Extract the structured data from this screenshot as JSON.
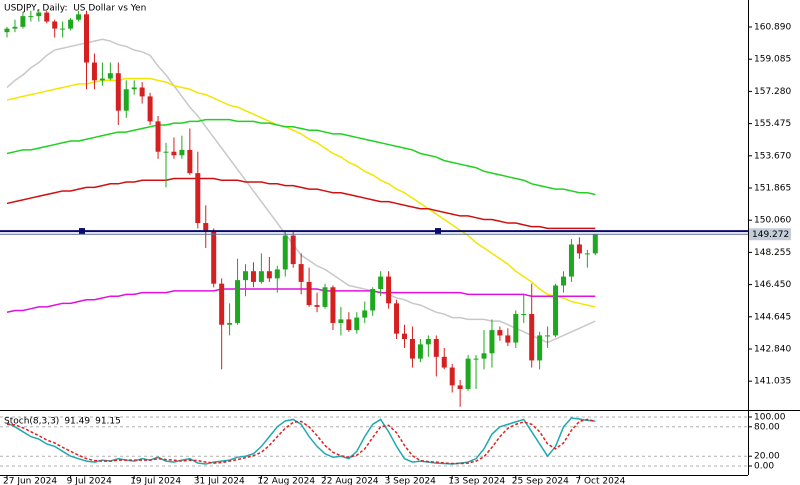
{
  "chart_data": [
    {
      "type": "candlestick",
      "title": "USDJPY, Daily:  US Dollar vs Yen",
      "categories": [
        "27 Jun 2024",
        null,
        null,
        null,
        null,
        null,
        null,
        null,
        "9 Jul 2024",
        null,
        null,
        null,
        null,
        null,
        null,
        null,
        "19 Jul 2024",
        null,
        null,
        null,
        null,
        null,
        null,
        null,
        "31 Jul 2024",
        null,
        null,
        null,
        null,
        null,
        null,
        null,
        "12 Aug 2024",
        null,
        null,
        null,
        null,
        null,
        null,
        null,
        "22 Aug 2024",
        null,
        null,
        null,
        null,
        null,
        null,
        null,
        "3 Sep 2024",
        null,
        null,
        null,
        null,
        null,
        null,
        null,
        "13 Sep 2024",
        null,
        null,
        null,
        null,
        null,
        null,
        null,
        "25 Sep 2024",
        null,
        null,
        null,
        null,
        null,
        null,
        null,
        "7 Oct 2024",
        null,
        null
      ],
      "ohlc": [
        [
          160.6,
          160.9,
          160.3,
          160.8
        ],
        [
          160.8,
          161.3,
          160.6,
          160.9
        ],
        [
          160.9,
          161.7,
          160.8,
          161.5
        ],
        [
          161.5,
          161.8,
          161.2,
          161.5
        ],
        [
          161.5,
          161.9,
          161.2,
          161.7
        ],
        [
          161.7,
          161.8,
          161.1,
          161.2
        ],
        [
          161.2,
          161.3,
          160.3,
          160.8
        ],
        [
          160.8,
          161.2,
          160.3,
          160.8
        ],
        [
          160.8,
          161.4,
          160.7,
          161.3
        ],
        [
          161.3,
          161.8,
          161.2,
          161.6
        ],
        [
          161.6,
          161.8,
          157.4,
          158.9
        ],
        [
          158.9,
          159.4,
          157.4,
          157.9
        ],
        [
          157.9,
          158.9,
          157.6,
          158.0
        ],
        [
          158.0,
          158.9,
          157.9,
          158.3
        ],
        [
          158.3,
          158.9,
          155.4,
          156.2
        ],
        [
          156.2,
          157.9,
          155.8,
          157.4
        ],
        [
          157.4,
          157.9,
          157.1,
          157.5
        ],
        [
          157.5,
          157.8,
          156.6,
          157.0
        ],
        [
          157.0,
          157.2,
          155.4,
          155.6
        ],
        [
          155.6,
          155.9,
          153.5,
          153.9
        ],
        [
          153.9,
          154.4,
          151.9,
          153.9
        ],
        [
          153.9,
          154.7,
          153.5,
          153.7
        ],
        [
          153.7,
          154.8,
          153.5,
          154.0
        ],
        [
          154.0,
          155.2,
          152.6,
          152.7
        ],
        [
          152.7,
          153.9,
          149.6,
          149.9
        ],
        [
          149.9,
          150.9,
          148.5,
          149.4
        ],
        [
          149.4,
          149.6,
          146.3,
          146.5
        ],
        [
          146.5,
          146.8,
          141.7,
          144.2
        ],
        [
          144.2,
          145.4,
          143.6,
          144.3
        ],
        [
          144.3,
          147.9,
          144.2,
          146.7
        ],
        [
          146.7,
          147.6,
          145.8,
          147.2
        ],
        [
          147.2,
          147.7,
          146.3,
          146.6
        ],
        [
          146.6,
          148.2,
          146.5,
          147.2
        ],
        [
          147.2,
          148.0,
          146.6,
          146.8
        ],
        [
          146.8,
          147.5,
          146.0,
          147.3
        ],
        [
          147.3,
          149.4,
          146.9,
          149.2
        ],
        [
          149.2,
          149.4,
          147.4,
          147.6
        ],
        [
          147.6,
          148.2,
          145.9,
          146.6
        ],
        [
          146.6,
          147.4,
          145.2,
          145.3
        ],
        [
          145.3,
          146.0,
          144.9,
          145.2
        ],
        [
          145.2,
          146.5,
          145.1,
          146.3
        ],
        [
          146.3,
          146.4,
          143.9,
          144.3
        ],
        [
          144.3,
          145.2,
          143.6,
          144.5
        ],
        [
          144.5,
          144.9,
          143.8,
          143.9
        ],
        [
          143.9,
          144.9,
          143.7,
          144.6
        ],
        [
          144.6,
          145.5,
          144.3,
          145.0
        ],
        [
          145.0,
          146.3,
          144.7,
          146.2
        ],
        [
          146.2,
          147.2,
          145.8,
          146.9
        ],
        [
          146.9,
          147.2,
          145.1,
          145.4
        ],
        [
          145.4,
          145.6,
          143.4,
          143.7
        ],
        [
          143.7,
          144.2,
          142.9,
          143.4
        ],
        [
          143.4,
          144.1,
          141.8,
          142.3
        ],
        [
          142.3,
          143.4,
          142.1,
          143.1
        ],
        [
          143.1,
          143.6,
          142.4,
          143.4
        ],
        [
          143.4,
          143.6,
          141.3,
          142.4
        ],
        [
          142.4,
          142.9,
          141.7,
          141.8
        ],
        [
          141.8,
          142.0,
          140.4,
          140.8
        ],
        [
          140.8,
          141.1,
          139.6,
          140.6
        ],
        [
          140.6,
          142.5,
          140.5,
          142.3
        ],
        [
          142.3,
          142.5,
          140.6,
          142.3
        ],
        [
          142.3,
          143.9,
          141.7,
          142.6
        ],
        [
          142.6,
          144.5,
          141.8,
          143.9
        ],
        [
          143.9,
          144.1,
          143.3,
          143.6
        ],
        [
          143.6,
          144.0,
          143.0,
          143.2
        ],
        [
          143.2,
          145.0,
          142.9,
          144.8
        ],
        [
          144.8,
          145.9,
          144.3,
          144.8
        ],
        [
          144.8,
          146.5,
          141.8,
          142.2
        ],
        [
          142.2,
          143.8,
          141.7,
          143.6
        ],
        [
          143.6,
          144.1,
          142.9,
          143.6
        ],
        [
          143.6,
          146.5,
          143.5,
          146.4
        ],
        [
          146.4,
          147.2,
          146.0,
          146.9
        ],
        [
          146.9,
          149.0,
          146.6,
          148.7
        ],
        [
          148.7,
          149.1,
          147.9,
          148.2
        ],
        [
          148.2,
          148.4,
          147.4,
          148.2
        ],
        [
          148.2,
          149.3,
          148.1,
          149.272
        ]
      ],
      "up_color": "#1fa81f",
      "down_color": "#d42020",
      "series": [
        {
          "color": "#c8c8c8",
          "values": [
            157.5,
            157.9,
            158.2,
            158.6,
            158.9,
            159.3,
            159.6,
            159.7,
            159.8,
            159.9,
            160.0,
            160.1,
            160.2,
            160.1,
            159.9,
            159.8,
            159.6,
            159.5,
            159.3,
            158.7,
            158.2,
            157.6,
            157.0,
            156.4,
            155.9,
            155.3,
            154.7,
            154.1,
            153.5,
            152.9,
            152.3,
            151.7,
            151.1,
            150.5,
            149.9,
            149.3,
            148.7,
            148.1,
            147.8,
            147.5,
            147.3,
            147.0,
            146.7,
            146.4,
            146.3,
            146.2,
            146.1,
            146.0,
            145.9,
            145.7,
            145.6,
            145.4,
            145.3,
            145.1,
            144.9,
            144.8,
            144.6,
            144.6,
            144.5,
            144.5,
            144.5,
            144.4,
            144.4,
            144.2,
            144.0,
            143.8,
            143.6,
            143.4,
            143.2,
            143.4,
            143.6,
            143.8,
            144.0,
            144.2,
            144.4
          ]
        },
        {
          "color": "#f2e600",
          "values": [
            156.8,
            156.9,
            157.0,
            157.1,
            157.2,
            157.3,
            157.4,
            157.5,
            157.6,
            157.7,
            157.7,
            157.8,
            157.9,
            157.9,
            157.9,
            158.0,
            158.0,
            158.0,
            158.0,
            157.9,
            157.8,
            157.6,
            157.5,
            157.4,
            157.2,
            157.1,
            156.9,
            156.7,
            156.5,
            156.4,
            156.2,
            156.0,
            155.8,
            155.6,
            155.4,
            155.3,
            155.1,
            154.9,
            154.6,
            154.4,
            154.1,
            153.8,
            153.6,
            153.3,
            153.1,
            152.8,
            152.6,
            152.3,
            152.1,
            151.8,
            151.6,
            151.3,
            151.0,
            150.7,
            150.4,
            150.1,
            149.8,
            149.5,
            149.2,
            148.8,
            148.5,
            148.2,
            147.9,
            147.6,
            147.2,
            146.9,
            146.6,
            146.2,
            145.9,
            145.8,
            145.7,
            145.5,
            145.4,
            145.3,
            145.2
          ]
        },
        {
          "color": "#22d022",
          "values": [
            153.8,
            153.9,
            154.0,
            154.0,
            154.1,
            154.2,
            154.3,
            154.4,
            154.5,
            154.5,
            154.6,
            154.7,
            154.8,
            154.9,
            155.0,
            155.0,
            155.1,
            155.2,
            155.3,
            155.4,
            155.4,
            155.5,
            155.5,
            155.6,
            155.6,
            155.7,
            155.7,
            155.7,
            155.7,
            155.6,
            155.6,
            155.6,
            155.5,
            155.5,
            155.4,
            155.3,
            155.3,
            155.2,
            155.1,
            155.1,
            155.0,
            154.9,
            154.9,
            154.8,
            154.7,
            154.6,
            154.5,
            154.4,
            154.3,
            154.2,
            154.1,
            154.0,
            153.8,
            153.7,
            153.6,
            153.4,
            153.3,
            153.2,
            153.1,
            153.0,
            152.8,
            152.7,
            152.6,
            152.5,
            152.4,
            152.3,
            152.1,
            152.0,
            151.9,
            151.8,
            151.8,
            151.7,
            151.6,
            151.6,
            151.5
          ]
        },
        {
          "color": "#d01010",
          "values": [
            151.0,
            151.1,
            151.2,
            151.3,
            151.4,
            151.5,
            151.6,
            151.7,
            151.7,
            151.8,
            151.9,
            151.9,
            152.0,
            152.1,
            152.1,
            152.2,
            152.2,
            152.3,
            152.3,
            152.3,
            152.3,
            152.4,
            152.4,
            152.4,
            152.4,
            152.4,
            152.4,
            152.3,
            152.3,
            152.3,
            152.2,
            152.2,
            152.2,
            152.1,
            152.1,
            152.0,
            152.0,
            151.9,
            151.8,
            151.8,
            151.7,
            151.6,
            151.6,
            151.5,
            151.4,
            151.3,
            151.2,
            151.1,
            151.1,
            151.0,
            150.9,
            150.8,
            150.7,
            150.7,
            150.6,
            150.5,
            150.4,
            150.3,
            150.3,
            150.2,
            150.1,
            150.1,
            150.0,
            149.9,
            149.9,
            149.8,
            149.7,
            149.7,
            149.6,
            149.6,
            149.6,
            149.6,
            149.6,
            149.6,
            149.6
          ]
        },
        {
          "color": "#e010e0",
          "values": [
            144.9,
            145.0,
            145.0,
            145.1,
            145.2,
            145.2,
            145.3,
            145.4,
            145.4,
            145.5,
            145.6,
            145.6,
            145.7,
            145.8,
            145.8,
            145.9,
            145.9,
            146.0,
            146.0,
            146.0,
            146.0,
            146.1,
            146.1,
            146.1,
            146.1,
            146.1,
            146.1,
            146.2,
            146.2,
            146.2,
            146.2,
            146.2,
            146.2,
            146.2,
            146.2,
            146.2,
            146.2,
            146.2,
            146.2,
            146.2,
            146.1,
            146.1,
            146.1,
            146.1,
            146.1,
            146.1,
            146.1,
            146.0,
            146.0,
            146.0,
            146.0,
            146.0,
            146.0,
            146.0,
            146.0,
            146.0,
            146.0,
            146.0,
            145.9,
            145.9,
            145.9,
            145.9,
            145.9,
            145.9,
            145.9,
            145.9,
            145.8,
            145.8,
            145.8,
            145.8,
            145.8,
            145.8,
            145.8,
            145.8,
            145.8
          ]
        }
      ],
      "hline": 149.45,
      "hline_color": "#0a0a6e",
      "price_line_color": "#5a6a9a",
      "ylim": [
        139.42,
        162.404
      ],
      "yticks": [
        {
          "value": 160.89,
          "label": "160.890"
        },
        159.085,
        {
          "value": 157.28,
          "label": "157.280"
        },
        155.475,
        {
          "value": 153.67,
          "label": "153.670"
        },
        151.865,
        {
          "value": 150.06,
          "label": "150.060"
        },
        148.255,
        {
          "value": 146.45,
          "label": "146.450"
        },
        144.645,
        {
          "value": 142.84,
          "label": "142.840"
        },
        141.035
      ]
    },
    {
      "type": "line",
      "title": "Stoch(8,3,3)",
      "series": [
        {
          "color": "#20a8b0",
          "values": [
            88,
            80,
            70,
            60,
            55,
            45,
            40,
            30,
            20,
            15,
            10,
            8,
            12,
            10,
            15,
            12,
            10,
            15,
            12,
            18,
            10,
            8,
            12,
            15,
            6,
            4,
            8,
            10,
            12,
            18,
            20,
            25,
            40,
            60,
            80,
            92,
            95,
            85,
            60,
            40,
            25,
            18,
            20,
            15,
            30,
            60,
            85,
            95,
            70,
            40,
            15,
            8,
            10,
            8,
            6,
            5,
            4,
            6,
            8,
            15,
            35,
            65,
            80,
            85,
            90,
            95,
            70,
            45,
            20,
            40,
            80,
            98,
            96,
            93,
            91.49
          ]
        },
        {
          "color": "#e02020",
          "dashed": true,
          "values": [
            85,
            84,
            78,
            70,
            62,
            53,
            47,
            38,
            30,
            22,
            15,
            11,
            10,
            10,
            12,
            12,
            12,
            12,
            12,
            15,
            13,
            12,
            10,
            12,
            11,
            8,
            6,
            7,
            10,
            13,
            17,
            21,
            28,
            42,
            60,
            77,
            89,
            91,
            80,
            62,
            42,
            28,
            21,
            18,
            22,
            35,
            58,
            80,
            83,
            68,
            42,
            21,
            11,
            9,
            8,
            6,
            5,
            5,
            6,
            10,
            19,
            38,
            60,
            77,
            85,
            90,
            85,
            70,
            45,
            35,
            47,
            73,
            91,
            95,
            91.15
          ]
        }
      ],
      "ylim": [
        -16.3,
        110.2
      ],
      "yticks": [
        {
          "value": 100,
          "label": "100.00"
        },
        {
          "value": 80,
          "label": "80.00"
        },
        {
          "value": 20,
          "label": "20.00"
        },
        {
          "value": 0,
          "label": "0.00"
        }
      ]
    }
  ]
}
